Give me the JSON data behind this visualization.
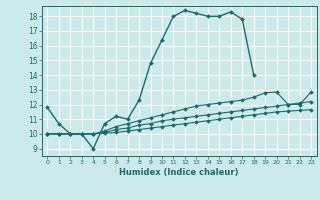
{
  "xlabel": "Humidex (Indice chaleur)",
  "bg_color": "#cceaea",
  "line_color": "#1a6b6b",
  "grid_color": "#ffffff",
  "xlim": [
    -0.5,
    23.5
  ],
  "ylim": [
    8.5,
    18.7
  ],
  "xticks": [
    0,
    1,
    2,
    3,
    4,
    5,
    6,
    7,
    8,
    9,
    10,
    11,
    12,
    13,
    14,
    15,
    16,
    17,
    18,
    19,
    20,
    21,
    22,
    23
  ],
  "yticks": [
    9,
    10,
    11,
    12,
    13,
    14,
    15,
    16,
    17,
    18
  ],
  "lines": [
    {
      "x": [
        0,
        1,
        2,
        3,
        4,
        5,
        6,
        7,
        8,
        9,
        10,
        11,
        12,
        13,
        14,
        15,
        16,
        17,
        18
      ],
      "y": [
        11.8,
        10.7,
        10.0,
        10.0,
        9.0,
        10.7,
        11.2,
        11.0,
        12.3,
        14.8,
        16.4,
        18.0,
        18.4,
        18.2,
        18.0,
        18.0,
        18.3,
        17.8,
        14.0
      ]
    },
    {
      "x": [
        0,
        1,
        2,
        3,
        4,
        5,
        6,
        7,
        8,
        9,
        10,
        11,
        12,
        13,
        14,
        15,
        16,
        17,
        18,
        19,
        20,
        21,
        22,
        23
      ],
      "y": [
        10.0,
        10.0,
        10.0,
        10.0,
        10.0,
        10.2,
        10.5,
        10.7,
        10.9,
        11.1,
        11.3,
        11.5,
        11.7,
        11.9,
        12.0,
        12.1,
        12.2,
        12.3,
        12.5,
        12.8,
        12.85,
        12.0,
        12.0,
        12.85
      ]
    },
    {
      "x": [
        0,
        1,
        2,
        3,
        4,
        5,
        6,
        7,
        8,
        9,
        10,
        11,
        12,
        13,
        14,
        15,
        16,
        17,
        18,
        19,
        20,
        21,
        22,
        23
      ],
      "y": [
        10.0,
        10.0,
        10.0,
        10.0,
        10.0,
        10.1,
        10.3,
        10.4,
        10.6,
        10.7,
        10.9,
        11.0,
        11.1,
        11.2,
        11.3,
        11.4,
        11.5,
        11.6,
        11.7,
        11.8,
        11.9,
        12.0,
        12.1,
        12.2
      ]
    },
    {
      "x": [
        0,
        1,
        2,
        3,
        4,
        5,
        6,
        7,
        8,
        9,
        10,
        11,
        12,
        13,
        14,
        15,
        16,
        17,
        18,
        19,
        20,
        21,
        22,
        23
      ],
      "y": [
        10.0,
        10.0,
        10.0,
        10.0,
        10.0,
        10.05,
        10.1,
        10.2,
        10.3,
        10.4,
        10.5,
        10.6,
        10.7,
        10.8,
        10.9,
        11.0,
        11.1,
        11.2,
        11.3,
        11.4,
        11.5,
        11.55,
        11.6,
        11.65
      ]
    }
  ]
}
